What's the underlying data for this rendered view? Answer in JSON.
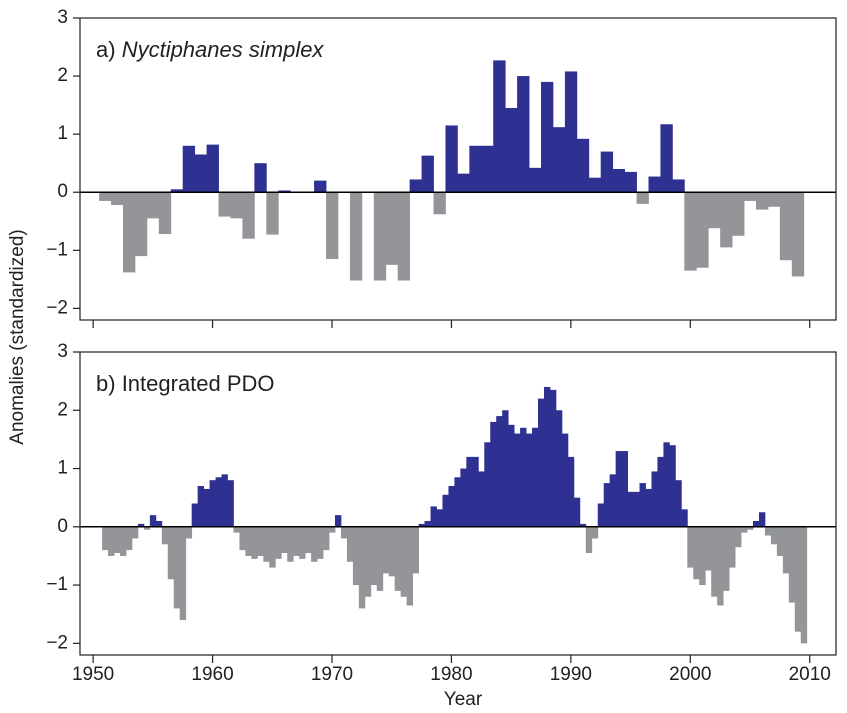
{
  "chart_data": [
    {
      "type": "bar",
      "label": "a)",
      "title": "Nyctiphanes simplex",
      "ylabel": "Anomalies (standardized)",
      "positive_color": "#2e3192",
      "negative_color": "#939598",
      "xlim": [
        1948.9,
        2012.2
      ],
      "xticks": [
        1950,
        1960,
        1970,
        1980,
        1990,
        2000,
        2010
      ],
      "show_xtick_labels": false,
      "ylim": [
        -2.2,
        3
      ],
      "yticks": [
        {
          "value": -2,
          "label": "−2"
        },
        {
          "value": -1,
          "label": "−1"
        },
        0,
        1,
        2,
        3
      ],
      "x": [
        1951,
        1952,
        1953,
        1954,
        1955,
        1956,
        1957,
        1958,
        1959,
        1960,
        1961,
        1962,
        1963,
        1964,
        1965,
        1966,
        1967,
        1968,
        1969,
        1970,
        1971,
        1972,
        1973,
        1974,
        1975,
        1976,
        1977,
        1978,
        1979,
        1980,
        1981,
        1982,
        1983,
        1984,
        1985,
        1986,
        1987,
        1988,
        1989,
        1990,
        1991,
        1992,
        1993,
        1994,
        1995,
        1996,
        1997,
        1998,
        1999,
        2000,
        2001,
        2002,
        2003,
        2004,
        2005,
        2006,
        2007,
        2008,
        2009
      ],
      "values": [
        -0.15,
        -0.22,
        -1.38,
        -1.1,
        -0.45,
        -0.72,
        0.05,
        0.8,
        0.65,
        0.82,
        -0.42,
        -0.45,
        -0.8,
        0.5,
        -0.73,
        0.03,
        0,
        0,
        0.2,
        -1.15,
        0,
        -1.52,
        0,
        -1.52,
        -1.25,
        -1.52,
        0.22,
        0.63,
        -0.38,
        1.15,
        0.32,
        0.8,
        0.8,
        2.27,
        1.45,
        2.0,
        0.42,
        1.9,
        1.12,
        2.08,
        0.92,
        0.25,
        0.7,
        0.4,
        0.35,
        -0.2,
        0.27,
        1.17,
        0.22,
        -1.35,
        -1.3,
        -0.62,
        -0.95,
        -0.75,
        -0.15,
        -0.3,
        -0.25,
        -1.17,
        -1.45
      ]
    },
    {
      "type": "bar",
      "label": "b)",
      "title": "Integrated PDO",
      "xlabel": "Year",
      "positive_color": "#2e3192",
      "negative_color": "#939598",
      "xlim": [
        1948.9,
        2012.2
      ],
      "xticks": [
        1950,
        1960,
        1970,
        1980,
        1990,
        2000,
        2010
      ],
      "show_xtick_labels": true,
      "ylim": [
        -2.2,
        3
      ],
      "yticks": [
        {
          "value": -2,
          "label": "−2"
        },
        {
          "value": -1,
          "label": "−1"
        },
        0,
        1,
        2,
        3
      ],
      "x": [
        1951,
        1951.5,
        1952,
        1952.5,
        1953,
        1953.5,
        1954,
        1954.5,
        1955,
        1955.5,
        1956,
        1956.5,
        1957,
        1957.5,
        1958,
        1958.5,
        1959,
        1959.5,
        1960,
        1960.5,
        1961,
        1961.5,
        1962,
        1962.5,
        1963,
        1963.5,
        1964,
        1964.5,
        1965,
        1965.5,
        1966,
        1966.5,
        1967,
        1967.5,
        1968,
        1968.5,
        1969,
        1969.5,
        1970,
        1970.5,
        1971,
        1971.5,
        1972,
        1972.5,
        1973,
        1973.5,
        1974,
        1974.5,
        1975,
        1975.5,
        1976,
        1976.5,
        1977,
        1977.5,
        1978,
        1978.5,
        1979,
        1979.5,
        1980,
        1980.5,
        1981,
        1981.5,
        1982,
        1982.5,
        1983,
        1983.5,
        1984,
        1984.5,
        1985,
        1985.5,
        1986,
        1986.5,
        1987,
        1987.5,
        1988,
        1988.5,
        1989,
        1989.5,
        1990,
        1990.5,
        1991,
        1991.5,
        1992,
        1992.5,
        1993,
        1993.5,
        1994,
        1994.5,
        1995,
        1995.5,
        1996,
        1996.5,
        1997,
        1997.5,
        1998,
        1998.5,
        1999,
        1999.5,
        2000,
        2000.5,
        2001,
        2001.5,
        2002,
        2002.5,
        2003,
        2003.5,
        2004,
        2004.5,
        2005,
        2005.5,
        2006,
        2006.5,
        2007,
        2007.5,
        2008,
        2008.5,
        2009,
        2009.5
      ],
      "values": [
        -0.4,
        -0.5,
        -0.45,
        -0.5,
        -0.4,
        -0.2,
        0.05,
        -0.05,
        0.2,
        0.1,
        -0.3,
        -0.9,
        -1.4,
        -1.6,
        -0.2,
        0.4,
        0.7,
        0.65,
        0.8,
        0.85,
        0.9,
        0.8,
        -0.1,
        -0.4,
        -0.5,
        -0.55,
        -0.5,
        -0.6,
        -0.7,
        -0.55,
        -0.45,
        -0.6,
        -0.5,
        -0.55,
        -0.45,
        -0.6,
        -0.55,
        -0.4,
        -0.1,
        0.2,
        -0.2,
        -0.6,
        -1.0,
        -1.4,
        -1.2,
        -1.0,
        -1.1,
        -0.8,
        -0.85,
        -1.1,
        -1.2,
        -1.35,
        -0.8,
        0.05,
        0.1,
        0.35,
        0.3,
        0.55,
        0.7,
        0.85,
        1.0,
        1.2,
        1.2,
        0.95,
        1.45,
        1.8,
        1.9,
        2.0,
        1.75,
        1.6,
        1.7,
        1.6,
        1.7,
        2.2,
        2.4,
        2.35,
        2.0,
        1.6,
        1.2,
        0.5,
        0.05,
        -0.45,
        -0.2,
        0.4,
        0.75,
        0.9,
        1.3,
        1.3,
        0.6,
        0.6,
        0.75,
        0.65,
        0.95,
        1.2,
        1.45,
        1.4,
        0.8,
        0.3,
        -0.7,
        -0.9,
        -1.0,
        -0.75,
        -1.2,
        -1.35,
        -1.1,
        -0.7,
        -0.35,
        -0.1,
        -0.05,
        0.1,
        0.25,
        -0.15,
        -0.3,
        -0.5,
        -0.8,
        -1.3,
        -1.8,
        -2.0
      ]
    }
  ]
}
